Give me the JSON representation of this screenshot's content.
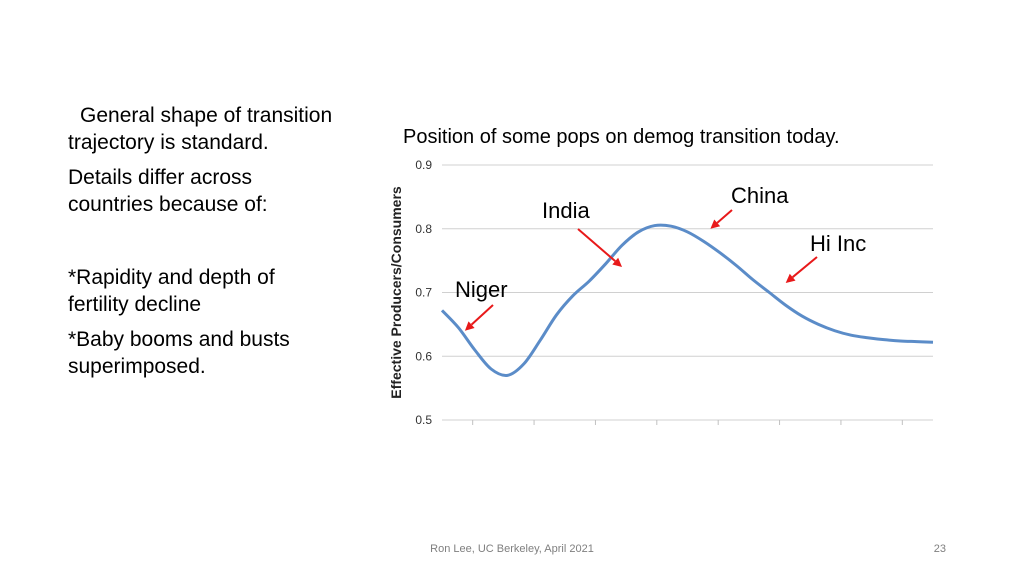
{
  "slide": {
    "para1": "General shape of transition trajectory is standard.",
    "para2": "Details differ across countries because of:",
    "para3": "*Rapidity and depth of fertility decline",
    "para4": "*Baby booms and busts superimposed.",
    "footer": "Ron Lee, UC Berkeley, April 2021",
    "page_number": "23"
  },
  "chart_data": {
    "type": "line",
    "title": "Position of some pops on demog transition today.",
    "xlabel": "",
    "ylabel": "Effective Producers/Consumers",
    "ylim": [
      0.5,
      0.9
    ],
    "yticks": [
      "0.5",
      "0.6",
      "0.7",
      "0.8",
      "0.9"
    ],
    "xlim": [
      0,
      15
    ],
    "grid": true,
    "line_color": "#5b8cc8",
    "arrow_color": "#e8191a",
    "series": [
      {
        "x": [
          0,
          0.5,
          1,
          1.5,
          2,
          2.5,
          3,
          3.5,
          4,
          4.5,
          5,
          5.5,
          6,
          6.5,
          7,
          7.5,
          8,
          8.5,
          9,
          9.5,
          10,
          10.5,
          11,
          11.5,
          12,
          12.5,
          13,
          13.5,
          14,
          14.5,
          15
        ],
        "values": [
          0.672,
          0.645,
          0.61,
          0.58,
          0.57,
          0.588,
          0.625,
          0.665,
          0.695,
          0.718,
          0.745,
          0.774,
          0.795,
          0.805,
          0.804,
          0.795,
          0.78,
          0.762,
          0.742,
          0.72,
          0.7,
          0.68,
          0.663,
          0.65,
          0.64,
          0.633,
          0.629,
          0.626,
          0.624,
          0.623,
          0.622
        ]
      }
    ],
    "annotations": [
      {
        "label": "Niger",
        "point_x": 0.7,
        "point_y": 0.64
      },
      {
        "label": "India",
        "point_x": 5.5,
        "point_y": 0.74
      },
      {
        "label": "China",
        "point_x": 8.2,
        "point_y": 0.8
      },
      {
        "label": "Hi Inc",
        "point_x": 10.5,
        "point_y": 0.715
      }
    ]
  }
}
